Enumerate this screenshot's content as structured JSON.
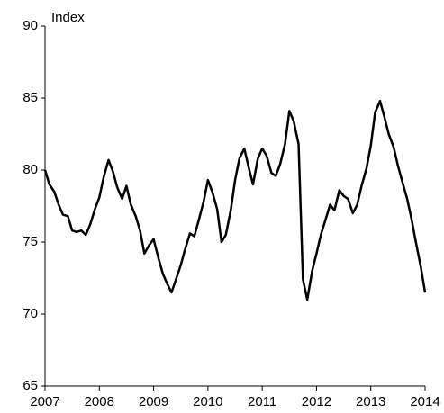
{
  "chart_data": {
    "type": "line",
    "y_label": "Index",
    "x": [
      2007.0,
      2007.08,
      2007.17,
      2007.25,
      2007.33,
      2007.42,
      2007.5,
      2007.58,
      2007.67,
      2007.75,
      2007.83,
      2007.92,
      2008.0,
      2008.08,
      2008.17,
      2008.25,
      2008.33,
      2008.42,
      2008.5,
      2008.58,
      2008.67,
      2008.75,
      2008.83,
      2008.92,
      2009.0,
      2009.08,
      2009.17,
      2009.25,
      2009.33,
      2009.42,
      2009.5,
      2009.58,
      2009.67,
      2009.75,
      2009.83,
      2009.92,
      2010.0,
      2010.08,
      2010.17,
      2010.25,
      2010.33,
      2010.42,
      2010.5,
      2010.58,
      2010.67,
      2010.75,
      2010.83,
      2010.92,
      2011.0,
      2011.08,
      2011.17,
      2011.25,
      2011.33,
      2011.42,
      2011.5,
      2011.58,
      2011.67,
      2011.75,
      2011.83,
      2011.92,
      2012.0,
      2012.08,
      2012.17,
      2012.25,
      2012.33,
      2012.42,
      2012.5,
      2012.58,
      2012.67,
      2012.75,
      2012.83,
      2012.92,
      2013.0,
      2013.08,
      2013.17,
      2013.25,
      2013.33,
      2013.42,
      2013.5,
      2013.58,
      2013.67,
      2013.75,
      2013.83,
      2013.92,
      2014.0
    ],
    "series": [
      {
        "color": "#000000",
        "values": [
          80.0,
          79.0,
          78.5,
          77.6,
          76.9,
          76.8,
          75.8,
          75.7,
          75.8,
          75.5,
          76.2,
          77.3,
          78.1,
          79.5,
          80.7,
          79.9,
          78.8,
          78.0,
          78.9,
          77.6,
          76.8,
          75.8,
          74.2,
          74.8,
          75.2,
          74.0,
          72.8,
          72.1,
          71.5,
          72.5,
          73.4,
          74.5,
          75.6,
          75.4,
          76.5,
          77.8,
          79.3,
          78.5,
          77.3,
          75.0,
          75.5,
          77.2,
          79.3,
          80.8,
          81.5,
          80.2,
          79.0,
          80.8,
          81.5,
          81.0,
          79.8,
          79.6,
          80.4,
          81.8,
          84.1,
          83.4,
          81.8,
          72.4,
          71.0,
          73.0,
          74.2,
          75.5,
          76.6,
          77.6,
          77.2,
          78.6,
          78.2,
          78.0,
          77.0,
          77.6,
          78.9,
          80.1,
          81.7,
          84.0,
          84.8,
          83.7,
          82.5,
          81.6,
          80.3,
          79.2,
          78.0,
          76.6,
          75.0,
          73.3,
          71.5
        ]
      }
    ],
    "xlim": [
      2007,
      2014
    ],
    "xticks": [
      2007,
      2008,
      2009,
      2010,
      2011,
      2012,
      2013,
      2014
    ],
    "ylim": [
      65,
      90
    ],
    "yticks": [
      65,
      70,
      75,
      80,
      85,
      90
    ],
    "grid": false
  }
}
